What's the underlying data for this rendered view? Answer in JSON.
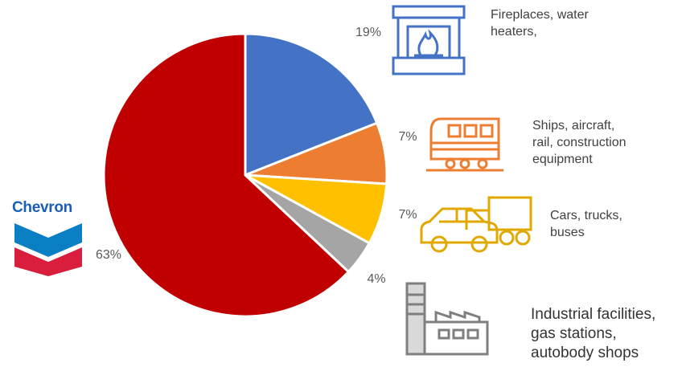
{
  "brand": {
    "logo_text": "Chevron",
    "colors": {
      "blue": "#0b7fc4",
      "red": "#d81e3c",
      "navy": "#1a5fb4"
    }
  },
  "chart_data": {
    "type": "pie",
    "title": "",
    "start_angle_deg": 0,
    "direction": "clockwise",
    "slices": [
      {
        "label": "Fireplaces, water heaters,",
        "value": 19,
        "value_label": "19%",
        "color": "#4472c4"
      },
      {
        "label": "Ships, aircraft, rail, construction equipment",
        "value": 7,
        "value_label": "7%",
        "color": "#ed7d31"
      },
      {
        "label": "Cars, trucks, buses",
        "value": 7,
        "value_label": "7%",
        "color": "#ffc000"
      },
      {
        "label": "Industrial facilities, gas stations, autobody shops",
        "value": 4,
        "value_label": "4%",
        "color": "#a5a5a5"
      },
      {
        "label": "",
        "value": 63,
        "value_label": "63%",
        "color": "#c00000"
      }
    ]
  },
  "categories": [
    {
      "icon": "fireplace-icon",
      "line1": "Fireplaces, water",
      "line2": "heaters,",
      "icon_color": "#4472c4"
    },
    {
      "icon": "train-icon",
      "line1": "Ships, aircraft,",
      "line2": "rail, construction",
      "line3": "equipment",
      "icon_color": "#ed7d31"
    },
    {
      "icon": "car-truck-icon",
      "line1": "Cars, trucks,",
      "line2": "buses",
      "icon_color": "#e0a800"
    },
    {
      "icon": "factory-icon",
      "line1": "Industrial facilities,",
      "line2": "gas stations,",
      "line3": "autobody shops",
      "icon_color": "#7f7f7f"
    }
  ]
}
